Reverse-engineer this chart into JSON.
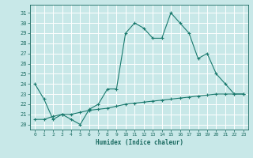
{
  "line1_x": [
    0,
    1,
    2,
    3,
    4,
    5,
    6,
    7,
    8,
    9,
    10,
    11,
    12,
    13,
    14,
    15,
    16,
    17,
    18,
    19,
    20,
    21,
    22,
    23
  ],
  "line1_y": [
    24,
    22.5,
    20.5,
    21,
    20.5,
    20,
    21.5,
    22,
    23.5,
    23.5,
    29,
    30,
    29.5,
    28.5,
    28.5,
    31,
    30,
    29,
    26.5,
    27,
    25,
    24,
    23,
    23
  ],
  "line2_x": [
    0,
    1,
    2,
    3,
    4,
    5,
    6,
    7,
    8,
    9,
    10,
    11,
    12,
    13,
    14,
    15,
    16,
    17,
    18,
    19,
    20,
    21,
    22,
    23
  ],
  "line2_y": [
    20.5,
    20.5,
    20.8,
    21,
    21,
    21.2,
    21.4,
    21.5,
    21.6,
    21.8,
    22.0,
    22.1,
    22.2,
    22.3,
    22.4,
    22.5,
    22.6,
    22.7,
    22.8,
    22.9,
    23.0,
    23.0,
    23.0,
    23.0
  ],
  "line_color": "#1a7a6e",
  "bg_color": "#c8e8e8",
  "grid_color": "#b0d8d8",
  "xlabel": "Humidex (Indice chaleur)",
  "yticks": [
    20,
    21,
    22,
    23,
    24,
    25,
    26,
    27,
    28,
    29,
    30,
    31
  ],
  "xticks": [
    0,
    1,
    2,
    3,
    4,
    5,
    6,
    7,
    8,
    9,
    10,
    11,
    12,
    13,
    14,
    15,
    16,
    17,
    18,
    19,
    20,
    21,
    22,
    23
  ],
  "ylim": [
    19.5,
    31.8
  ],
  "xlim": [
    -0.5,
    23.5
  ],
  "font_color": "#1a6a60"
}
